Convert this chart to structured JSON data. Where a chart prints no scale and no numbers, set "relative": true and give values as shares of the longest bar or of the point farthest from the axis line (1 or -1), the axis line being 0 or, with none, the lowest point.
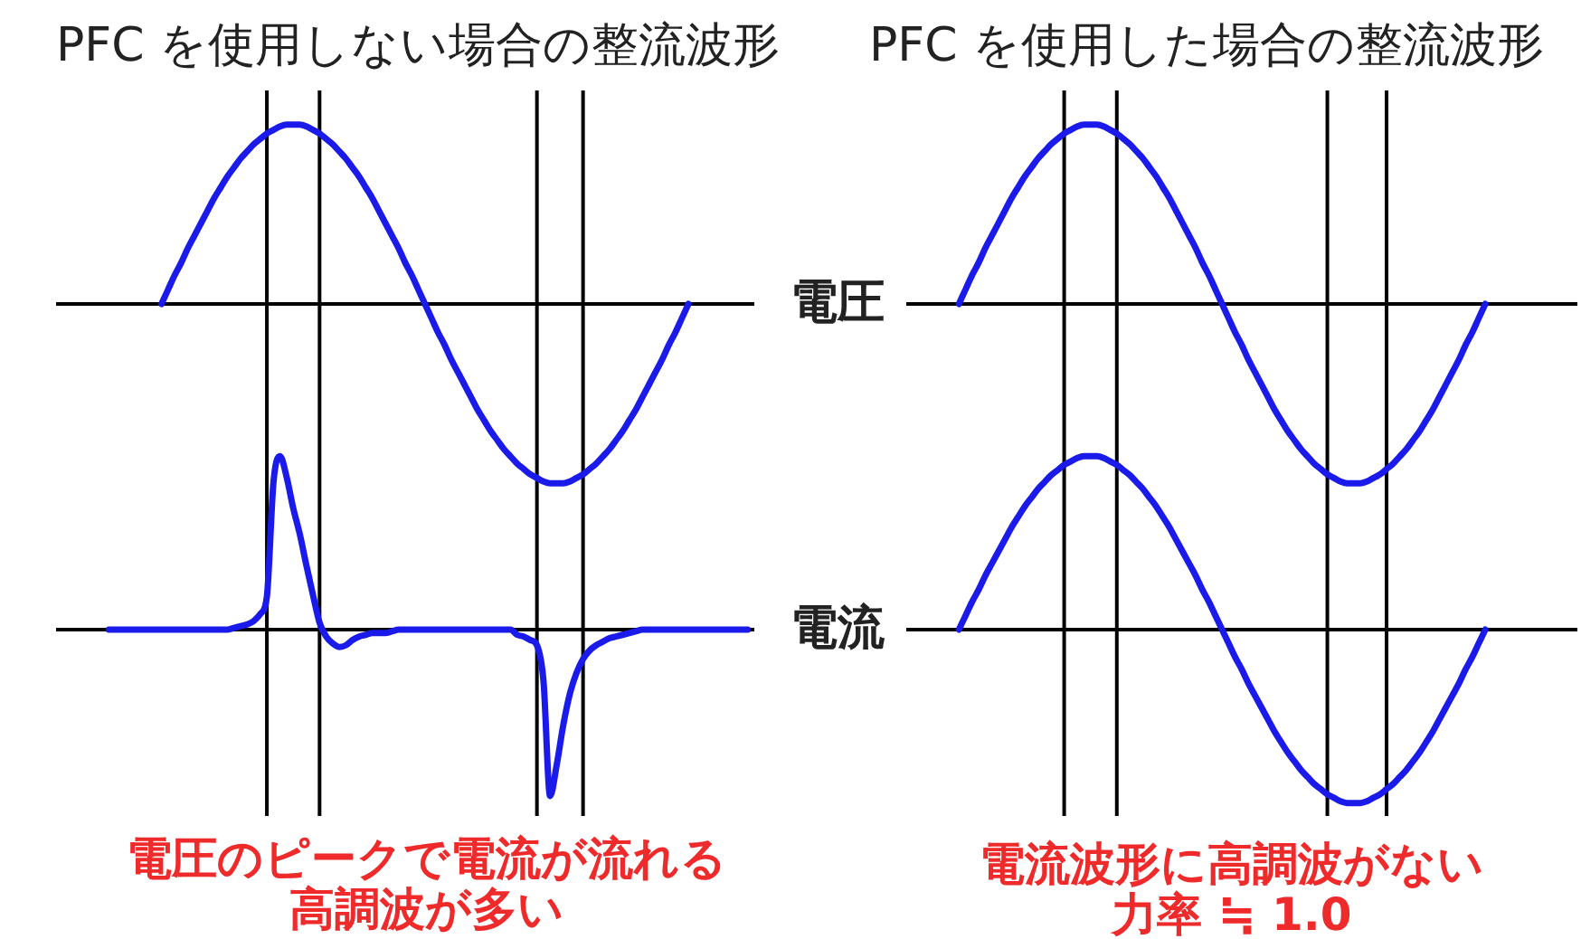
{
  "chart_data": [
    {
      "type": "line",
      "title": "PFC を使用しない場合の整流波形",
      "relative": true,
      "grid": "x",
      "categories": [
        null,
        null,
        null,
        null,
        null,
        null,
        null,
        null,
        null,
        null,
        null,
        null,
        null,
        null,
        null,
        null,
        null,
        null,
        null,
        null,
        null,
        null,
        null,
        null,
        null,
        null,
        null,
        null,
        null,
        null,
        null,
        null,
        null,
        null,
        null,
        null,
        null,
        null,
        null,
        null,
        null,
        null,
        null,
        null,
        null,
        null,
        null,
        null,
        null,
        null,
        null,
        null,
        null,
        null,
        null,
        null,
        null,
        null,
        null,
        null,
        null,
        null,
        null,
        null,
        null,
        null,
        null,
        null,
        null,
        null,
        null,
        null,
        null,
        null,
        null,
        null,
        null,
        null,
        null,
        null,
        null,
        null,
        null,
        null,
        null,
        null,
        null,
        null,
        null,
        null,
        null,
        null,
        null,
        null,
        null,
        null,
        null,
        null,
        null,
        null,
        null,
        null,
        null,
        null,
        null,
        null,
        null
      ],
      "series": [
        {
          "color": "#1a1aeb",
          "values": [
            null,
            null,
            null,
            null,
            null,
            null,
            null,
            null,
            null,
            null,
            null,
            null,
            null,
            null,
            null,
            null,
            0,
            0.08,
            0.16,
            0.23,
            0.31,
            0.38,
            0.45,
            0.52,
            0.59,
            0.65,
            0.71,
            0.76,
            0.81,
            0.85,
            0.89,
            0.92,
            0.95,
            0.97,
            0.99,
            1,
            1,
            1,
            0.99,
            0.97,
            0.95,
            0.92,
            0.89,
            0.85,
            0.81,
            0.76,
            0.71,
            0.65,
            0.59,
            0.52,
            0.45,
            0.38,
            0.31,
            0.23,
            0.16,
            0.08,
            0,
            -0.08,
            -0.16,
            -0.23,
            -0.31,
            -0.38,
            -0.45,
            -0.52,
            -0.59,
            -0.65,
            -0.71,
            -0.76,
            -0.81,
            -0.85,
            -0.89,
            -0.92,
            -0.95,
            -0.97,
            -0.99,
            -1,
            -1,
            -1,
            -0.99,
            -0.97,
            -0.95,
            -0.92,
            -0.89,
            -0.85,
            -0.81,
            -0.76,
            -0.71,
            -0.65,
            -0.59,
            -0.52,
            -0.45,
            -0.38,
            -0.31,
            -0.23,
            -0.16,
            -0.08,
            0,
            null,
            null,
            null,
            null,
            null,
            null,
            null,
            null,
            null,
            null
          ]
        }
      ]
    },
    {
      "type": "line",
      "relative": true,
      "grid": "x",
      "categories": [
        null,
        null,
        null,
        null,
        null,
        null,
        null,
        null,
        null,
        null,
        null,
        null,
        null,
        null,
        null,
        null,
        null,
        null,
        null,
        null,
        null,
        null,
        null,
        null,
        null,
        null,
        null,
        null,
        null,
        null,
        null,
        null,
        null,
        null,
        null,
        null,
        null,
        null,
        null,
        null,
        null,
        null,
        null,
        null,
        null,
        null,
        null,
        null,
        null,
        null,
        null,
        null,
        null,
        null,
        null,
        null,
        null,
        null,
        null,
        null,
        null,
        null,
        null,
        null,
        null,
        null,
        null,
        null,
        null,
        null,
        null,
        null,
        null,
        null,
        null,
        null,
        null,
        null,
        null,
        null,
        null,
        null,
        null,
        null,
        null,
        null,
        null,
        null,
        null,
        null,
        null,
        null,
        null,
        null,
        null,
        null,
        null,
        null,
        null,
        null,
        null,
        null,
        null,
        null,
        null,
        null,
        null
      ],
      "series": [
        {
          "color": "#1a1aeb",
          "values": [
            null,
            null,
            null,
            null,
            null,
            null,
            null,
            null,
            0,
            0,
            0,
            0,
            0,
            0,
            0,
            0,
            0,
            0,
            0,
            0,
            0,
            0,
            0,
            0,
            0,
            0,
            0,
            0.01,
            0.02,
            0.03,
            0.05,
            0.09,
            0.19,
            0.85,
            1,
            0.88,
            0.7,
            0.55,
            0.37,
            0.2,
            0.04,
            -0.04,
            -0.08,
            -0.1,
            -0.09,
            -0.06,
            -0.04,
            -0.03,
            -0.02,
            -0.02,
            -0.02,
            -0.01,
            0,
            0,
            0,
            0,
            0,
            0,
            0,
            0,
            0,
            0,
            0,
            0,
            0,
            0,
            0,
            0,
            0,
            0,
            -0.03,
            -0.04,
            -0.06,
            -0.09,
            -0.3,
            -0.96,
            -0.78,
            -0.55,
            -0.37,
            -0.25,
            -0.17,
            -0.12,
            -0.09,
            -0.07,
            -0.05,
            -0.04,
            -0.03,
            -0.02,
            -0.01,
            0,
            0,
            0,
            0,
            0,
            0,
            0,
            0,
            0,
            0,
            0,
            0,
            0,
            0,
            0,
            0,
            0,
            null
          ]
        }
      ],
      "annotations": [
        "電圧のピークで電流が流れる",
        "高調波が多い"
      ]
    },
    {
      "type": "line",
      "title": "PFC を使用した場合の整流波形",
      "ylabel": "電圧",
      "relative": true,
      "grid": "x",
      "categories": [
        null,
        null,
        null,
        null,
        null,
        null,
        null,
        null,
        null,
        null,
        null,
        null,
        null,
        null,
        null,
        null,
        null,
        null,
        null,
        null,
        null,
        null,
        null,
        null,
        null,
        null,
        null,
        null,
        null,
        null,
        null,
        null,
        null,
        null,
        null,
        null,
        null,
        null,
        null,
        null,
        null,
        null,
        null,
        null,
        null,
        null,
        null,
        null,
        null,
        null,
        null,
        null,
        null,
        null,
        null,
        null,
        null,
        null,
        null,
        null,
        null,
        null,
        null,
        null,
        null,
        null,
        null,
        null,
        null,
        null,
        null,
        null,
        null,
        null,
        null,
        null,
        null,
        null,
        null,
        null,
        null,
        null,
        null,
        null,
        null,
        null,
        null,
        null,
        null,
        null,
        null,
        null,
        null,
        null,
        null,
        null,
        null,
        null,
        null,
        null,
        null,
        null,
        null
      ],
      "series": [
        {
          "color": "#1a1aeb",
          "values": [
            null,
            null,
            null,
            null,
            null,
            null,
            null,
            null,
            0,
            0.08,
            0.16,
            0.23,
            0.31,
            0.38,
            0.45,
            0.52,
            0.59,
            0.65,
            0.71,
            0.76,
            0.81,
            0.85,
            0.89,
            0.92,
            0.95,
            0.97,
            0.99,
            1,
            1,
            1,
            0.99,
            0.97,
            0.95,
            0.92,
            0.89,
            0.85,
            0.81,
            0.76,
            0.71,
            0.65,
            0.59,
            0.52,
            0.45,
            0.38,
            0.31,
            0.23,
            0.16,
            0.08,
            0,
            -0.08,
            -0.16,
            -0.23,
            -0.31,
            -0.38,
            -0.45,
            -0.52,
            -0.59,
            -0.65,
            -0.71,
            -0.76,
            -0.81,
            -0.85,
            -0.89,
            -0.92,
            -0.95,
            -0.97,
            -0.99,
            -1,
            -1,
            -1,
            -0.99,
            -0.97,
            -0.95,
            -0.92,
            -0.89,
            -0.85,
            -0.81,
            -0.76,
            -0.71,
            -0.65,
            -0.59,
            -0.52,
            -0.45,
            -0.38,
            -0.31,
            -0.23,
            -0.16,
            -0.08,
            0,
            null,
            null,
            null,
            null,
            null,
            null,
            null,
            null,
            null,
            null,
            null,
            null,
            null,
            null
          ]
        }
      ]
    },
    {
      "type": "line",
      "ylabel": "電流",
      "relative": true,
      "grid": "x",
      "categories": [
        null,
        null,
        null,
        null,
        null,
        null,
        null,
        null,
        null,
        null,
        null,
        null,
        null,
        null,
        null,
        null,
        null,
        null,
        null,
        null,
        null,
        null,
        null,
        null,
        null,
        null,
        null,
        null,
        null,
        null,
        null,
        null,
        null,
        null,
        null,
        null,
        null,
        null,
        null,
        null,
        null,
        null,
        null,
        null,
        null,
        null,
        null,
        null,
        null,
        null,
        null,
        null,
        null,
        null,
        null,
        null,
        null,
        null,
        null,
        null,
        null,
        null,
        null,
        null,
        null,
        null,
        null,
        null,
        null,
        null,
        null,
        null,
        null,
        null,
        null,
        null,
        null,
        null,
        null,
        null,
        null,
        null,
        null,
        null,
        null,
        null,
        null,
        null,
        null,
        null,
        null,
        null,
        null,
        null,
        null,
        null,
        null,
        null,
        null,
        null,
        null,
        null,
        null
      ],
      "series": [
        {
          "color": "#1a1aeb",
          "values": [
            null,
            null,
            null,
            null,
            null,
            null,
            null,
            null,
            0,
            0.08,
            0.16,
            0.23,
            0.31,
            0.38,
            0.45,
            0.52,
            0.59,
            0.65,
            0.71,
            0.76,
            0.81,
            0.85,
            0.89,
            0.92,
            0.95,
            0.97,
            0.99,
            1,
            1,
            1,
            0.99,
            0.97,
            0.95,
            0.92,
            0.89,
            0.85,
            0.81,
            0.76,
            0.71,
            0.65,
            0.59,
            0.52,
            0.45,
            0.38,
            0.31,
            0.23,
            0.16,
            0.08,
            0,
            -0.08,
            -0.16,
            -0.23,
            -0.31,
            -0.38,
            -0.45,
            -0.52,
            -0.59,
            -0.65,
            -0.71,
            -0.76,
            -0.81,
            -0.85,
            -0.89,
            -0.92,
            -0.95,
            -0.97,
            -0.99,
            -1,
            -1,
            -1,
            -0.99,
            -0.97,
            -0.95,
            -0.92,
            -0.89,
            -0.85,
            -0.81,
            -0.76,
            -0.71,
            -0.65,
            -0.59,
            -0.52,
            -0.45,
            -0.38,
            -0.31,
            -0.23,
            -0.16,
            -0.08,
            0,
            null,
            null,
            null,
            null,
            null,
            null,
            null,
            null,
            null,
            null,
            null,
            null,
            null,
            null
          ]
        }
      ],
      "annotations": [
        "電流波形に高調波がない",
        "力率 ≒ 1.0"
      ]
    }
  ]
}
